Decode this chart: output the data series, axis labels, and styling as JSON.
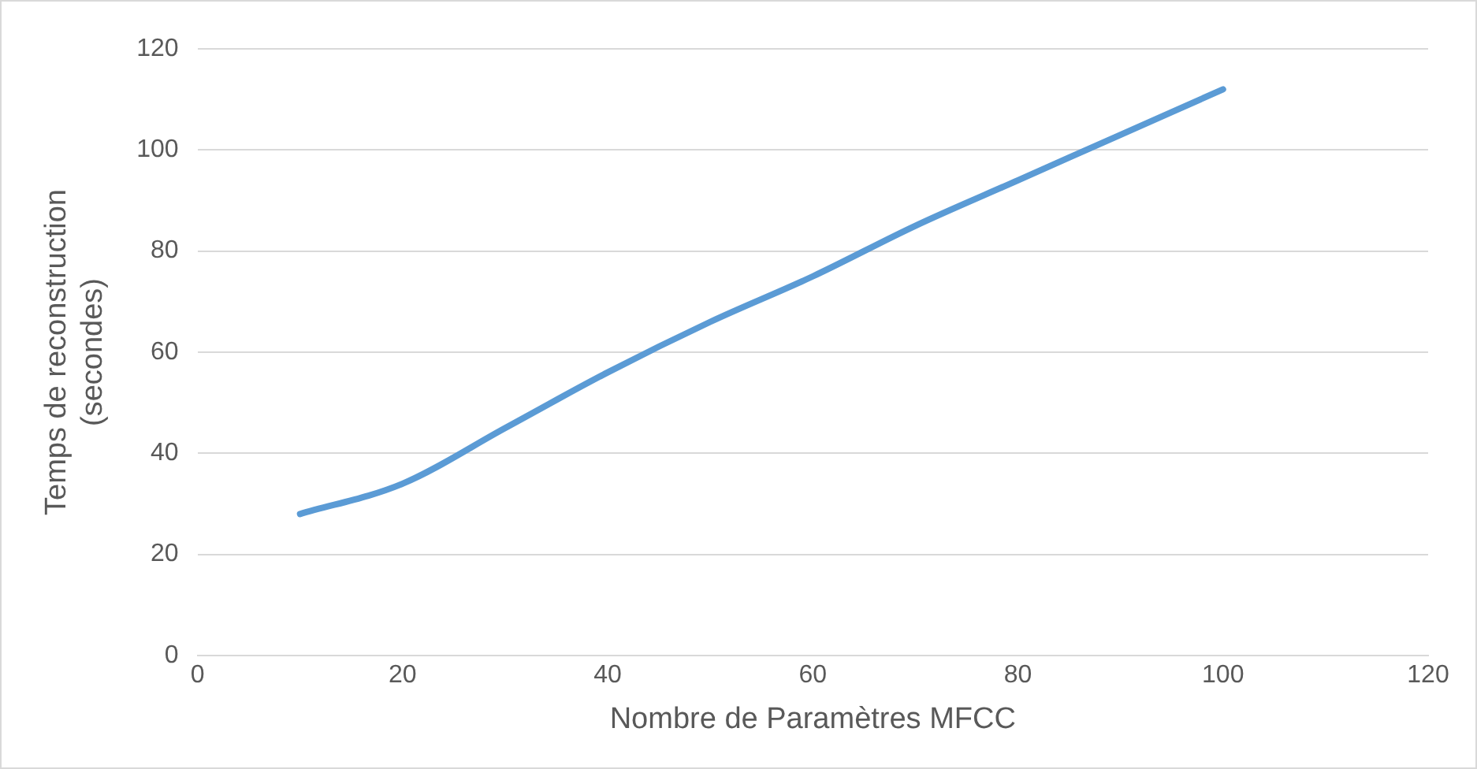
{
  "chart_data": {
    "type": "line",
    "xlabel": "Nombre de Paramètres MFCC",
    "ylabel": "Temps de reconstruction (secondes)",
    "series": [
      {
        "color": "#5b9bd5",
        "x": [
          10,
          20,
          30,
          40,
          50,
          60,
          70,
          80,
          90,
          100
        ],
        "values": [
          28,
          34,
          45,
          56,
          66,
          75,
          85,
          94,
          103,
          112
        ]
      }
    ],
    "xlim": [
      0,
      120
    ],
    "xticks": [
      0,
      20,
      40,
      60,
      80,
      100,
      120
    ],
    "ylim": [
      0,
      120
    ],
    "yticks": [
      0,
      20,
      40,
      60,
      80,
      100,
      120
    ],
    "grid": "y",
    "legend": false,
    "marker": "none",
    "line_style": "solid"
  }
}
